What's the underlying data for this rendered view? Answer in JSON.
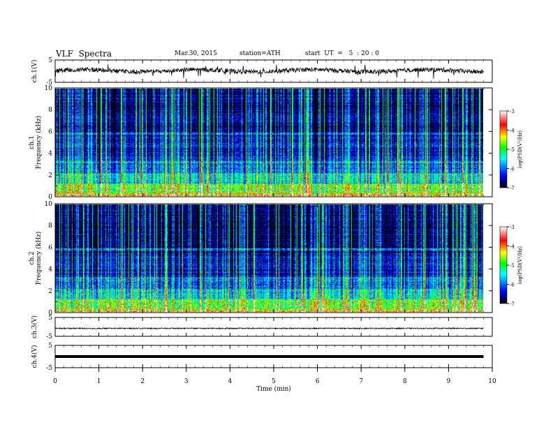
{
  "header": {
    "title": "VLF  Spectra",
    "date": "Mar.30, 2015",
    "station": "station=ATH",
    "start": "start  UT  =   5  : 20 : 0"
  },
  "chart_data": {
    "type": "heatmap",
    "xlabel": "Time  (min)",
    "x_ticks": [
      "0",
      "1",
      "2",
      "3",
      "4",
      "5",
      "6",
      "7",
      "8",
      "9",
      "10"
    ],
    "xlim": [
      0,
      10
    ],
    "data_end_min": 9.8,
    "panels": [
      {
        "id": "ch1v",
        "kind": "waveform",
        "ylabel": "ch.1(V)",
        "y_ticks": [
          "5",
          "-5"
        ],
        "ylim": [
          -5,
          5
        ]
      },
      {
        "id": "ch1spec",
        "kind": "spectrogram",
        "ylabel_channel": "ch.1",
        "ylabel": "Frequency  (kHz)",
        "y_ticks": [
          "0",
          "2",
          "4",
          "6",
          "8",
          "10"
        ],
        "ylim": [
          0,
          10
        ]
      },
      {
        "id": "ch2spec",
        "kind": "spectrogram",
        "ylabel_channel": "ch.2",
        "ylabel": "Frequency  (kHz)",
        "y_ticks": [
          "0",
          "2",
          "4",
          "6",
          "8",
          "10"
        ],
        "ylim": [
          0,
          10
        ]
      },
      {
        "id": "ch3v",
        "kind": "waveform",
        "ylabel": "ch.3(V)",
        "y_ticks": [
          "5",
          "-5"
        ],
        "ylim": [
          -5,
          5
        ]
      },
      {
        "id": "ch4v",
        "kind": "waveform",
        "ylabel": "ch.4(V)",
        "y_ticks": [
          "5",
          "-5"
        ],
        "ylim": [
          -5,
          5
        ]
      }
    ],
    "colorbar": {
      "label": "log(PSD(V²/Hz)",
      "ticks": [
        "-3",
        "-4",
        "-5",
        "-6",
        "-7"
      ],
      "range": [
        -7,
        -3
      ],
      "colors": [
        "#000000",
        "#0000ff",
        "#00ffff",
        "#00ff00",
        "#ffff00",
        "#ff0000",
        "#ffffff"
      ]
    }
  }
}
